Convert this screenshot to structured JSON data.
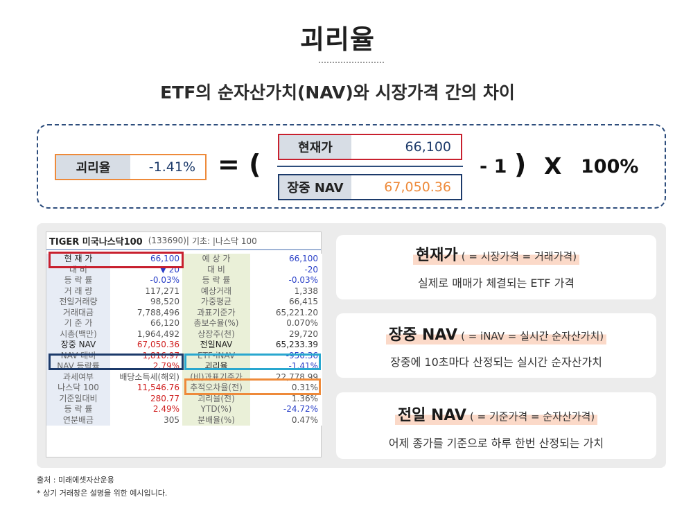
{
  "title": "괴리율",
  "subtitle": "ETF의 순자산가치(NAV)와 시장가격 간의 차이",
  "formula": {
    "result_label": "괴리율",
    "result_value": "-1.41%",
    "equals": "= (",
    "price_label": "현재가",
    "price_value": "66,100",
    "nav_label": "장중 NAV",
    "nav_value": "67,050.36",
    "minus_one": "- 1",
    "close_paren": ")",
    "times": "X",
    "percent": "100%"
  },
  "hts": {
    "name": "TIGER 미국나스닥100",
    "code": "(133690)|",
    "base": "기초: |나스닥 100",
    "rows": [
      [
        "현 재 가",
        "66,100",
        "예 상 가",
        "66,100"
      ],
      [
        "대    비",
        "▼      20",
        "대    비",
        "-20"
      ],
      [
        "등 락 률",
        "-0.03%",
        "등 락 률",
        "-0.03%"
      ],
      [
        "거 래 량",
        "117,271",
        "예상거래",
        "1,338"
      ],
      [
        "전일거래량",
        "98,520",
        "가중평균",
        "66,415"
      ],
      [
        "거래대금",
        "7,788,496",
        "과표기준가",
        "65,221.20"
      ],
      [
        "기 준 가",
        "66,120",
        "총보수율(%)",
        "0.070%"
      ],
      [
        "시총(백만)",
        "1,964,492",
        "상장주(천)",
        "29,720"
      ],
      [
        "장중 NAV",
        "67,050.36",
        "전일NAV",
        "65,233.39"
      ],
      [
        "NAV 대비",
        "1,816.97",
        "ETF-iNAV",
        "-950.36"
      ],
      [
        "NAV 등락률",
        "2.79%",
        "괴리율",
        "-1.41%"
      ],
      [
        "과세여부",
        "배당소득세(해외)",
        "(비)과표기준가",
        "22,778.99"
      ],
      [
        "나스닥 100",
        "11,546.76",
        "추적오차율(전)",
        "0.31%"
      ],
      [
        "기준일대비",
        "280.77",
        "괴리율(전)",
        "1.36%"
      ],
      [
        "등 락 률",
        "2.49%",
        "YTD(%)",
        "-24.72%"
      ],
      [
        "연분배금",
        "305",
        "분배율(%)",
        "0.47%"
      ]
    ]
  },
  "cards": [
    {
      "head": "현재가",
      "note": "( = 시장가격 = 거래가격)",
      "desc": "실제로 매매가 체결되는 ETF 가격"
    },
    {
      "head": "장중 NAV",
      "note": "( = iNAV = 실시간 순자산가치)",
      "desc": "장중에 10초마다 산정되는 실시간 순자산가치"
    },
    {
      "head": "전일 NAV",
      "note": "( = 기준가격 = 순자산가격)",
      "desc": "어제 종가를 기준으로 하루 한번 산정되는 가치"
    }
  ],
  "footer": {
    "source": "출처 : 미래에셋자산운용",
    "note": "* 상기 거래창은 설명을 위한 예시입니다."
  },
  "colors": {
    "dashed_border": "#2d4d7c",
    "price_border": "#c8202e",
    "nav_border": "#1c3a6a",
    "result_border": "#ee8a3a",
    "prev_nav_border": "#29a7cf",
    "highlight_peach": "#fbd9c8",
    "nav_value_text": "#ee8a3a",
    "price_value_text": "#1c3a6a",
    "result_value_text": "#1c3a6a"
  }
}
